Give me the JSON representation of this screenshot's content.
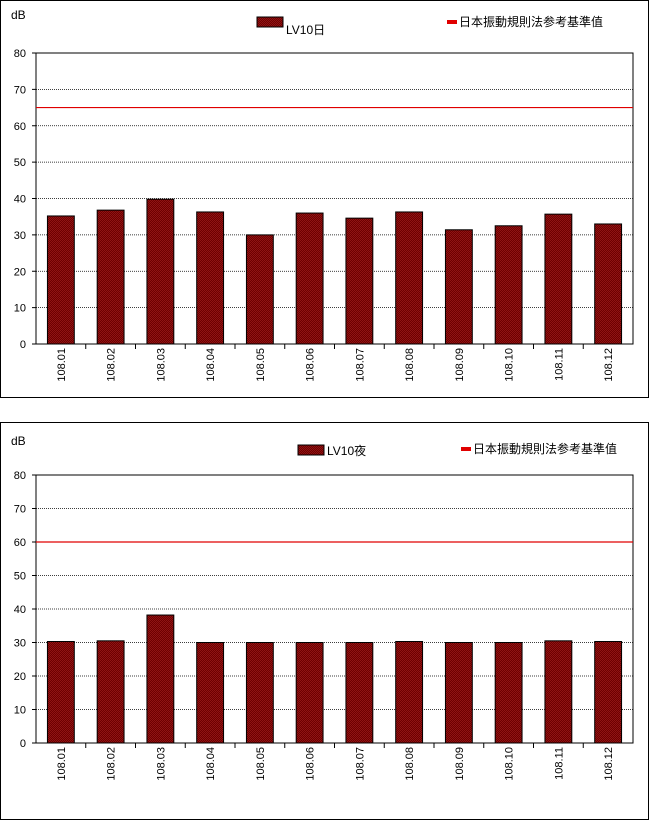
{
  "chart_data": [
    {
      "type": "bar",
      "unit_label": "dB",
      "categories": [
        "108.01",
        "108.02",
        "108.03",
        "108.04",
        "108.05",
        "108.06",
        "108.07",
        "108.08",
        "108.09",
        "108.10",
        "108.11",
        "108.12"
      ],
      "series": [
        {
          "name": "LV10日",
          "values": [
            35.2,
            36.8,
            39.8,
            36.3,
            30.0,
            36.0,
            34.6,
            36.3,
            31.4,
            32.5,
            35.7,
            33.0
          ],
          "color": "#800000"
        }
      ],
      "reference": {
        "name": "日本振動規則法参考基準值",
        "value": 65,
        "color": "#e00000"
      },
      "ylim": [
        0,
        80
      ],
      "yticks": [
        0,
        10,
        20,
        30,
        40,
        50,
        60,
        70,
        80
      ],
      "grid": true,
      "legend_position": "top"
    },
    {
      "type": "bar",
      "unit_label": "dB",
      "categories": [
        "108.01",
        "108.02",
        "108.03",
        "108.04",
        "108.05",
        "108.06",
        "108.07",
        "108.08",
        "108.09",
        "108.10",
        "108.11",
        "108.12"
      ],
      "series": [
        {
          "name": "LV10夜",
          "values": [
            30.3,
            30.5,
            38.2,
            30.0,
            30.0,
            30.0,
            30.0,
            30.3,
            30.0,
            30.0,
            30.5,
            30.3
          ],
          "color": "#800000"
        }
      ],
      "reference": {
        "name": "日本振動規則法参考基準值",
        "value": 60,
        "color": "#e00000"
      },
      "ylim": [
        0,
        80
      ],
      "yticks": [
        0,
        10,
        20,
        30,
        40,
        50,
        60,
        70,
        80
      ],
      "grid": true,
      "legend_position": "top"
    }
  ]
}
